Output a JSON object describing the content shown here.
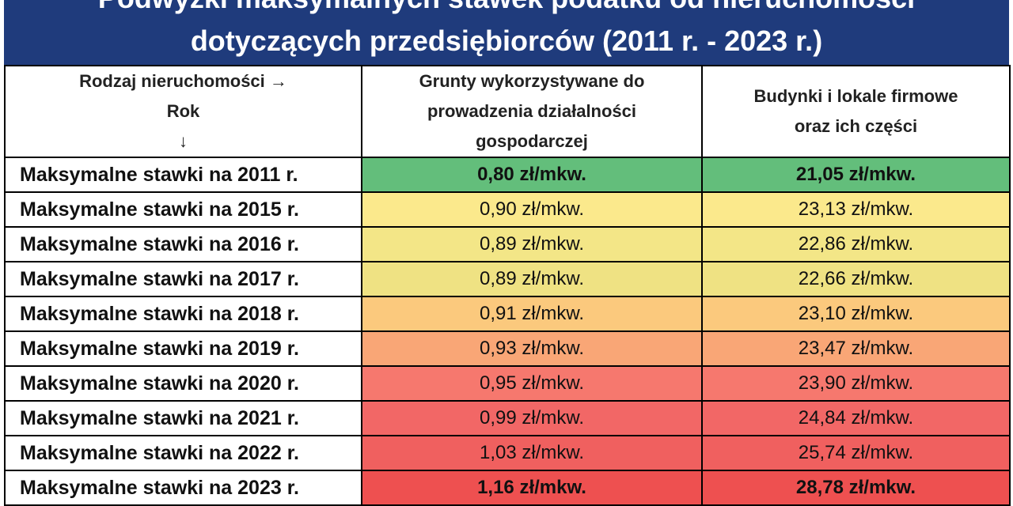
{
  "header": {
    "title_lines": [
      "Podwyżki maksymalnych stawek podatku od nieruchomości",
      "dotyczących przedsiębiorców (2011 r. - 2023 r.)"
    ]
  },
  "table": {
    "columns": [
      [
        "Rodzaj nieruchomości →",
        "Rok",
        "↓"
      ],
      [
        "Grunty wykorzystywane do",
        "prowadzenia działalności",
        "gospodarczej"
      ],
      [
        "Budynki i lokale firmowe",
        "oraz ich części"
      ]
    ],
    "rows": [
      [
        "Maksymalne stawki na 2011 r.",
        "0,80 zł/mkw.",
        "21,05 zł/mkw."
      ],
      [
        "Maksymalne stawki na 2015 r.",
        "0,90 zł/mkw.",
        "23,13 zł/mkw."
      ],
      [
        "Maksymalne stawki na 2016 r.",
        "0,89 zł/mkw.",
        "22,86 zł/mkw."
      ],
      [
        "Maksymalne stawki na 2017 r.",
        "0,89 zł/mkw.",
        "22,66 zł/mkw."
      ],
      [
        "Maksymalne stawki na 2018 r.",
        "0,91 zł/mkw.",
        "23,10 zł/mkw."
      ],
      [
        "Maksymalne stawki na 2019 r.",
        "0,93 zł/mkw.",
        "23,47 zł/mkw."
      ],
      [
        "Maksymalne stawki na 2020 r.",
        "0,95 zł/mkw.",
        "23,90 zł/mkw."
      ],
      [
        "Maksymalne stawki na 2021 r.",
        "0,99 zł/mkw.",
        "24,84 zł/mkw."
      ],
      [
        "Maksymalne stawki na 2022 r.",
        "1,03 zł/mkw.",
        "25,74 zł/mkw."
      ],
      [
        "Maksymalne stawki na 2023 r.",
        "1,16 zł/mkw.",
        "28,78 zł/mkw."
      ]
    ]
  }
}
